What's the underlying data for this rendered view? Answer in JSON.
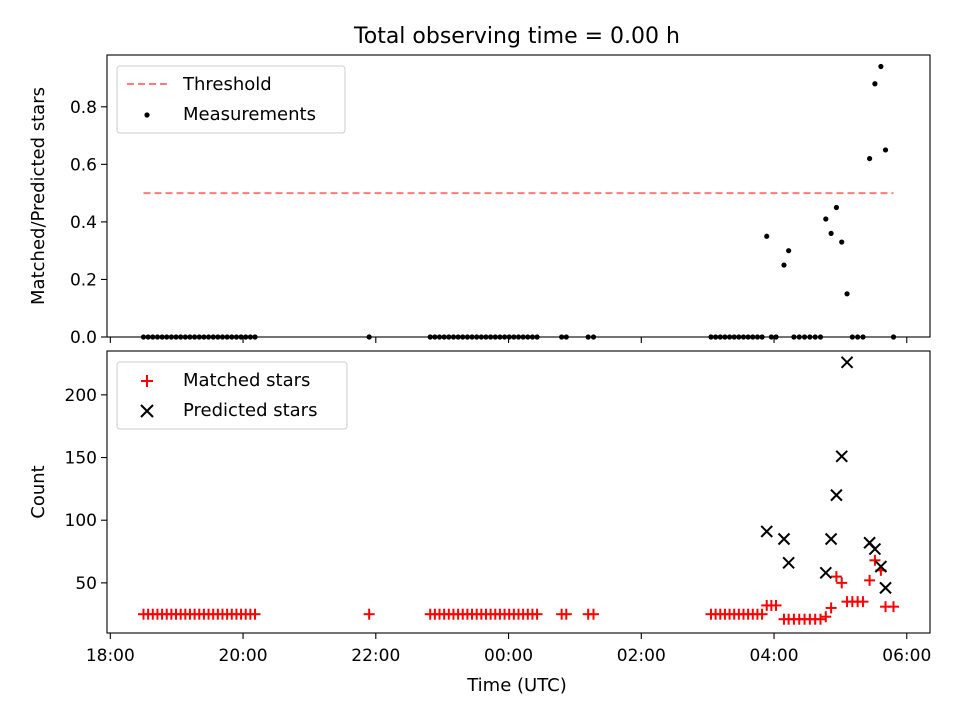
{
  "figure": {
    "title": "Total observing time = 0.00 h",
    "xlabel": "Time (UTC)"
  },
  "colors": {
    "threshold": "#ff7b7b",
    "matched": "#ff0000",
    "predicted": "#000000",
    "measurement": "#000000"
  },
  "chart_data": [
    {
      "type": "scatter",
      "ylabel": "Matched/Predicted stars",
      "x_unit": "hours since 00:00 UTC",
      "xlim": [
        -6.05,
        6.35
      ],
      "ylim": [
        0,
        0.98
      ],
      "xticks": [
        -6,
        -4,
        -2,
        0,
        2,
        4,
        6
      ],
      "xtick_labels": [],
      "yticks": [
        0.0,
        0.2,
        0.4,
        0.6,
        0.8
      ],
      "ytick_labels": [
        "0.0",
        "0.2",
        "0.4",
        "0.6",
        "0.8"
      ],
      "legend": {
        "position": "upper-left",
        "entries": [
          "Threshold",
          "Measurements"
        ]
      },
      "series": [
        {
          "name": "Threshold",
          "style": "dashed-line",
          "x": [
            -5.5,
            5.8
          ],
          "y": [
            0.5,
            0.5
          ]
        },
        {
          "name": "Measurements",
          "style": "dot",
          "x": [
            -5.5,
            -5.43,
            -5.36,
            -5.29,
            -5.22,
            -5.15,
            -5.08,
            -5.01,
            -4.94,
            -4.87,
            -4.8,
            -4.73,
            -4.66,
            -4.59,
            -4.52,
            -4.45,
            -4.38,
            -4.31,
            -4.24,
            -4.17,
            -4.1,
            -4.03,
            -3.96,
            -3.89,
            -3.82,
            -2.1,
            -1.18,
            -1.11,
            -1.04,
            -0.97,
            -0.9,
            -0.83,
            -0.76,
            -0.69,
            -0.62,
            -0.55,
            -0.48,
            -0.41,
            -0.34,
            -0.27,
            -0.2,
            -0.13,
            -0.06,
            0.01,
            0.08,
            0.15,
            0.22,
            0.29,
            0.36,
            0.43,
            0.8,
            0.87,
            1.2,
            1.28,
            3.05,
            3.12,
            3.19,
            3.26,
            3.33,
            3.4,
            3.47,
            3.54,
            3.61,
            3.68,
            3.75,
            3.82,
            3.89,
            3.96,
            4.03,
            4.15,
            4.22,
            4.3,
            4.38,
            4.46,
            4.54,
            4.62,
            4.7,
            4.78,
            4.86,
            4.94,
            5.02,
            5.1,
            5.18,
            5.26,
            5.34,
            5.44,
            5.52,
            5.61,
            5.68,
            5.8
          ],
          "y": [
            0,
            0,
            0,
            0,
            0,
            0,
            0,
            0,
            0,
            0,
            0,
            0,
            0,
            0,
            0,
            0,
            0,
            0,
            0,
            0,
            0,
            0,
            0,
            0,
            0,
            0,
            0,
            0,
            0,
            0,
            0,
            0,
            0,
            0,
            0,
            0,
            0,
            0,
            0,
            0,
            0,
            0,
            0,
            0,
            0,
            0,
            0,
            0,
            0,
            0,
            0,
            0,
            0,
            0,
            0,
            0,
            0,
            0,
            0,
            0,
            0,
            0,
            0,
            0,
            0,
            0,
            0.35,
            0,
            0,
            0.25,
            0.3,
            0,
            0,
            0,
            0,
            0,
            0,
            0.41,
            0.36,
            0.45,
            0.33,
            0.15,
            0,
            0,
            0,
            0.62,
            0.88,
            0.94,
            0.65,
            0
          ]
        }
      ]
    },
    {
      "type": "scatter",
      "ylabel": "Count",
      "x_unit": "hours since 00:00 UTC",
      "xlim": [
        -6.05,
        6.35
      ],
      "ylim": [
        10,
        235
      ],
      "xticks": [
        -6,
        -4,
        -2,
        0,
        2,
        4,
        6
      ],
      "xtick_labels": [
        "18:00",
        "20:00",
        "22:00",
        "00:00",
        "02:00",
        "04:00",
        "06:00"
      ],
      "yticks": [
        50,
        100,
        150,
        200
      ],
      "ytick_labels": [
        "50",
        "100",
        "150",
        "200"
      ],
      "legend": {
        "position": "upper-left",
        "entries": [
          "Matched stars",
          "Predicted stars"
        ]
      },
      "series": [
        {
          "name": "Matched stars",
          "marker": "plus",
          "x": [
            -5.5,
            -5.43,
            -5.36,
            -5.29,
            -5.22,
            -5.15,
            -5.08,
            -5.01,
            -4.94,
            -4.87,
            -4.8,
            -4.73,
            -4.66,
            -4.59,
            -4.52,
            -4.45,
            -4.38,
            -4.31,
            -4.24,
            -4.17,
            -4.1,
            -4.03,
            -3.96,
            -3.89,
            -3.82,
            -2.1,
            -1.18,
            -1.11,
            -1.04,
            -0.97,
            -0.9,
            -0.83,
            -0.76,
            -0.69,
            -0.62,
            -0.55,
            -0.48,
            -0.41,
            -0.34,
            -0.27,
            -0.2,
            -0.13,
            -0.06,
            0.01,
            0.08,
            0.15,
            0.22,
            0.29,
            0.36,
            0.43,
            0.8,
            0.87,
            1.2,
            1.28,
            3.05,
            3.12,
            3.19,
            3.26,
            3.33,
            3.4,
            3.47,
            3.54,
            3.61,
            3.68,
            3.75,
            3.82,
            3.89,
            3.96,
            4.03,
            4.15,
            4.22,
            4.3,
            4.38,
            4.46,
            4.54,
            4.62,
            4.7,
            4.78,
            4.86,
            4.94,
            5.02,
            5.1,
            5.18,
            5.26,
            5.34,
            5.44,
            5.52,
            5.61,
            5.68,
            5.8
          ],
          "y": [
            25,
            25,
            25,
            25,
            25,
            25,
            25,
            25,
            25,
            25,
            25,
            25,
            25,
            25,
            25,
            25,
            25,
            25,
            25,
            25,
            25,
            25,
            25,
            25,
            25,
            25,
            25,
            25,
            25,
            25,
            25,
            25,
            25,
            25,
            25,
            25,
            25,
            25,
            25,
            25,
            25,
            25,
            25,
            25,
            25,
            25,
            25,
            25,
            25,
            25,
            25,
            25,
            25,
            25,
            25,
            25,
            25,
            25,
            25,
            25,
            25,
            25,
            25,
            25,
            25,
            25,
            32,
            32,
            32,
            21,
            21,
            21,
            21,
            21,
            21,
            21,
            21,
            23,
            30,
            55,
            50,
            35,
            35,
            35,
            35,
            52,
            68,
            60,
            31,
            31
          ]
        },
        {
          "name": "Predicted stars",
          "marker": "x",
          "x": [
            3.89,
            4.15,
            4.22,
            4.78,
            4.86,
            4.94,
            5.02,
            5.1,
            5.44,
            5.52,
            5.61,
            5.68
          ],
          "y": [
            91,
            85,
            66,
            58,
            85,
            120,
            151,
            226,
            82,
            77,
            63,
            46
          ]
        }
      ]
    }
  ]
}
